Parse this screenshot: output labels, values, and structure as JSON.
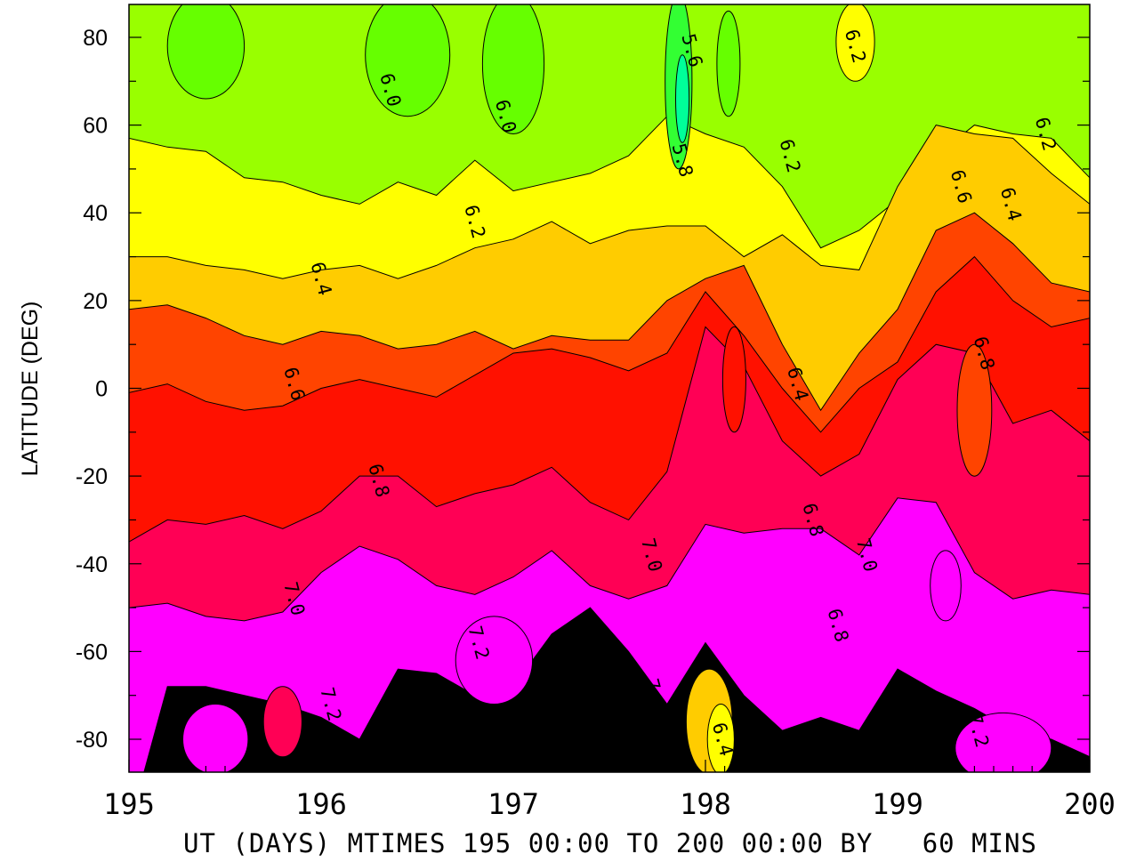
{
  "chart_data": {
    "type": "heatmap",
    "subtype": "filled-contour",
    "xlabel": "UT (DAYS) MTIMES 195 00:00 TO 200 00:00 BY   60 MINS",
    "ylabel": "LATITUDE (DEG)",
    "xlim": [
      195,
      200
    ],
    "ylim": [
      -87.5,
      87.5
    ],
    "x_ticks": [
      "195",
      "196",
      "197",
      "198",
      "199",
      "200"
    ],
    "y_ticks": [
      "80",
      "60",
      "40",
      "20",
      "0",
      "-20",
      "-40",
      "-60",
      "-80"
    ],
    "contour_levels": [
      5.6,
      5.8,
      6.0,
      6.2,
      6.4,
      6.6,
      6.8,
      7.0,
      7.2
    ],
    "level_colors": [
      "#00ff99",
      "#33ff33",
      "#66ff00",
      "#99ff00",
      "#ffff00",
      "#ffcc00",
      "#ff4400",
      "#ff1100",
      "#ff0055",
      "#ff00ff"
    ],
    "contour_labels": [
      {
        "text": "5.6",
        "x": 197.93,
        "y": 77
      },
      {
        "text": "5.8",
        "x": 197.88,
        "y": 52
      },
      {
        "text": "6.0",
        "x": 196.36,
        "y": 68
      },
      {
        "text": "6.0",
        "x": 196.96,
        "y": 62
      },
      {
        "text": "6.2",
        "x": 196.8,
        "y": 38
      },
      {
        "text": "6.2",
        "x": 198.44,
        "y": 53
      },
      {
        "text": "6.2",
        "x": 198.78,
        "y": 78
      },
      {
        "text": "6.2",
        "x": 199.77,
        "y": 58
      },
      {
        "text": "6.4",
        "x": 196.0,
        "y": 25
      },
      {
        "text": "6.4",
        "x": 198.48,
        "y": 1
      },
      {
        "text": "6.4",
        "x": 199.59,
        "y": 42
      },
      {
        "text": "6.4",
        "x": 198.09,
        "y": -80
      },
      {
        "text": "6.6",
        "x": 195.86,
        "y": 1
      },
      {
        "text": "6.6",
        "x": 199.33,
        "y": 46
      },
      {
        "text": "6.8",
        "x": 196.3,
        "y": -21
      },
      {
        "text": "6.8",
        "x": 198.56,
        "y": -30
      },
      {
        "text": "6.8",
        "x": 198.69,
        "y": -54
      },
      {
        "text": "6.8",
        "x": 199.45,
        "y": 8
      },
      {
        "text": "7.0",
        "x": 195.86,
        "y": -48
      },
      {
        "text": "7.0",
        "x": 197.72,
        "y": -38
      },
      {
        "text": "7.0",
        "x": 198.84,
        "y": -38
      },
      {
        "text": "7.0",
        "x": 197.74,
        "y": -70
      },
      {
        "text": "7.2",
        "x": 196.05,
        "y": -72
      },
      {
        "text": "7.2",
        "x": 196.82,
        "y": -58
      },
      {
        "text": "7.2",
        "x": 199.42,
        "y": -78
      }
    ],
    "grid": false,
    "legend": "none"
  }
}
